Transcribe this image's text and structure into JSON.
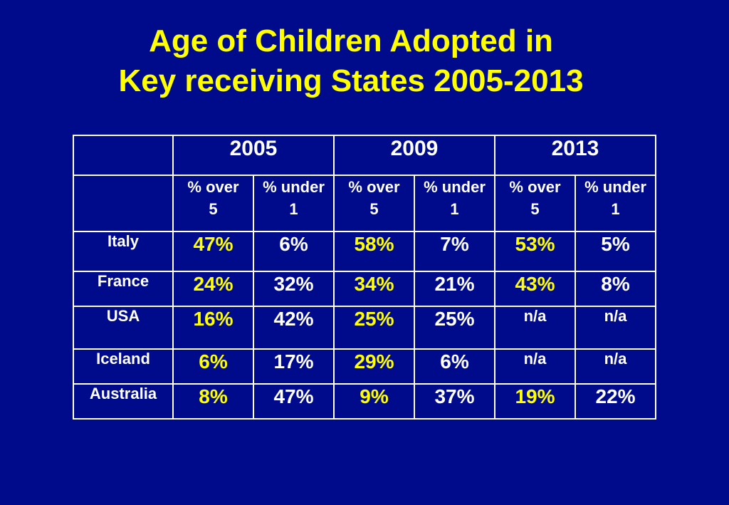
{
  "title": {
    "line1": "Age  of Children Adopted in",
    "line2": "Key receiving States  2005-2013"
  },
  "table": {
    "years": [
      "2005",
      "2009",
      "2013"
    ],
    "subheaders": [
      {
        "top": "% over",
        "bottom": "5"
      },
      {
        "top": "% under",
        "bottom": "1"
      },
      {
        "top": "% over",
        "bottom": "5"
      },
      {
        "top": "% under",
        "bottom": "1"
      },
      {
        "top": "% over",
        "bottom": "5"
      },
      {
        "top": "% under",
        "bottom": "1"
      }
    ],
    "rows": [
      {
        "country": "Italy",
        "values": [
          "47%",
          "6%",
          "58%",
          "7%",
          "53%",
          "5%"
        ]
      },
      {
        "country": "France",
        "values": [
          "24%",
          "32%",
          "34%",
          "21%",
          "43%",
          "8%"
        ]
      },
      {
        "country": "USA",
        "values": [
          "16%",
          "42%",
          "25%",
          "25%",
          "n/a",
          "n/a"
        ]
      },
      {
        "country": "Iceland",
        "values": [
          "6%",
          "17%",
          "29%",
          "6%",
          "n/a",
          "n/a"
        ]
      },
      {
        "country": "Australia",
        "values": [
          "8%",
          "47%",
          "9%",
          "37%",
          "19%",
          "22%"
        ]
      }
    ]
  },
  "colors": {
    "background": "#000b8c",
    "highlight": "#ffff00",
    "text": "#ffffff"
  }
}
